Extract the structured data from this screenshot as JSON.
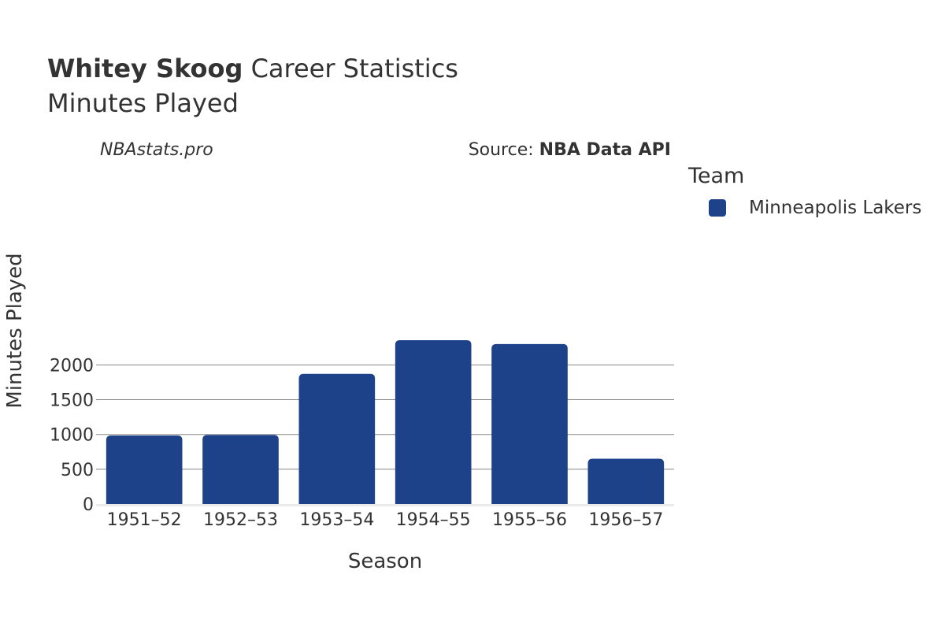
{
  "header": {
    "title_bold": "Whitey Skoog",
    "title_rest": " Career Statistics",
    "subtitle": "Minutes Played"
  },
  "watermark": "NBAstats.pro",
  "source": {
    "prefix": "Source: ",
    "name": "NBA Data API"
  },
  "legend": {
    "title": "Team",
    "items": [
      {
        "label": "Minneapolis Lakers",
        "color": "#1D428A"
      }
    ]
  },
  "chart_data": {
    "type": "bar",
    "title": "Whitey Skoog Career Statistics",
    "subtitle": "Minutes Played",
    "xlabel": "Season",
    "ylabel": "Minutes Played",
    "categories": [
      "1951–52",
      "1952–53",
      "1953–54",
      "1954–55",
      "1955–56",
      "1956–57"
    ],
    "series": [
      {
        "name": "Minneapolis Lakers",
        "color": "#1D428A",
        "values": [
          985,
          993,
          1872,
          2356,
          2301,
          651
        ]
      }
    ],
    "ylim": [
      0,
      2400
    ],
    "yticks": [
      0,
      500,
      1000,
      1500,
      2000
    ],
    "grid": true,
    "legend_position": "right"
  }
}
